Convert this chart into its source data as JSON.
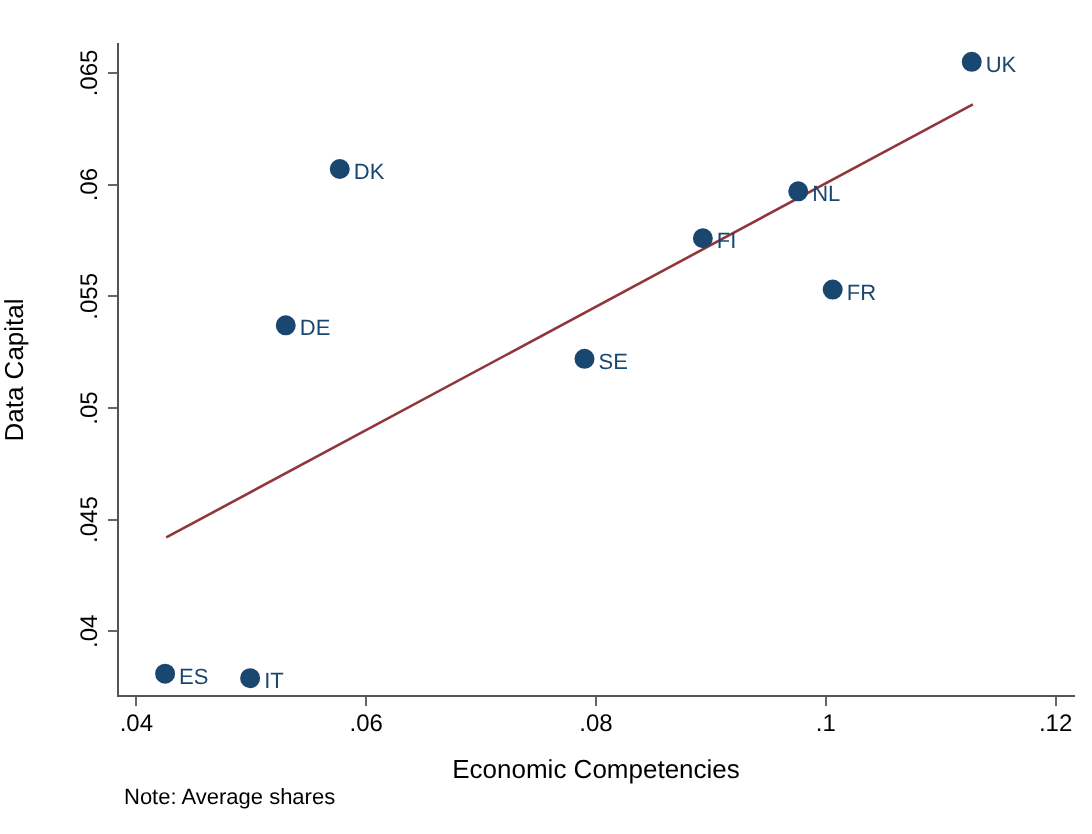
{
  "chart_data": {
    "type": "scatter",
    "xlabel": "Economic Competencies",
    "ylabel": "Data Capital",
    "xlim": [
      0.0384,
      0.1216
    ],
    "ylim": [
      0.0371,
      0.0663
    ],
    "xticks": [
      {
        "value": 0.04,
        "label": ".04"
      },
      {
        "value": 0.06,
        "label": ".06"
      },
      {
        "value": 0.08,
        "label": ".08"
      },
      {
        "value": 0.1,
        "label": ".1"
      },
      {
        "value": 0.12,
        "label": ".12"
      }
    ],
    "yticks": [
      {
        "value": 0.04,
        "label": ".04"
      },
      {
        "value": 0.045,
        "label": ".045"
      },
      {
        "value": 0.05,
        "label": ".05"
      },
      {
        "value": 0.055,
        "label": ".055"
      },
      {
        "value": 0.06,
        "label": ".06"
      },
      {
        "value": 0.065,
        "label": ".065"
      }
    ],
    "grid": false,
    "legend": false,
    "marker": "circle",
    "series": [
      {
        "type": "scatter",
        "color": "#1a476f",
        "x": [
          0.0577,
          0.053,
          0.1127,
          0.0976,
          0.0893,
          0.1006,
          0.079,
          0.0425,
          0.0499
        ],
        "values": [
          0.0607,
          0.0537,
          0.0655,
          0.0597,
          0.0576,
          0.0553,
          0.0522,
          0.0381,
          0.0379
        ]
      },
      {
        "type": "line",
        "marker": "none",
        "color": "#90353b",
        "x": [
          0.0426,
          0.1128
        ],
        "values": [
          0.0442,
          0.0636
        ]
      }
    ],
    "annotations": [
      {
        "text": "DK",
        "x": 0.0577,
        "y": 0.0607
      },
      {
        "text": "DE",
        "x": 0.053,
        "y": 0.0537
      },
      {
        "text": "UK",
        "x": 0.1127,
        "y": 0.0655
      },
      {
        "text": "NL",
        "x": 0.0976,
        "y": 0.0597
      },
      {
        "text": "FI",
        "x": 0.0893,
        "y": 0.0576
      },
      {
        "text": "FR",
        "x": 0.1006,
        "y": 0.0553
      },
      {
        "text": "SE",
        "x": 0.079,
        "y": 0.0522
      },
      {
        "text": "ES",
        "x": 0.0425,
        "y": 0.0381
      },
      {
        "text": "IT",
        "x": 0.0499,
        "y": 0.0379
      },
      "Note: Average shares"
    ]
  }
}
